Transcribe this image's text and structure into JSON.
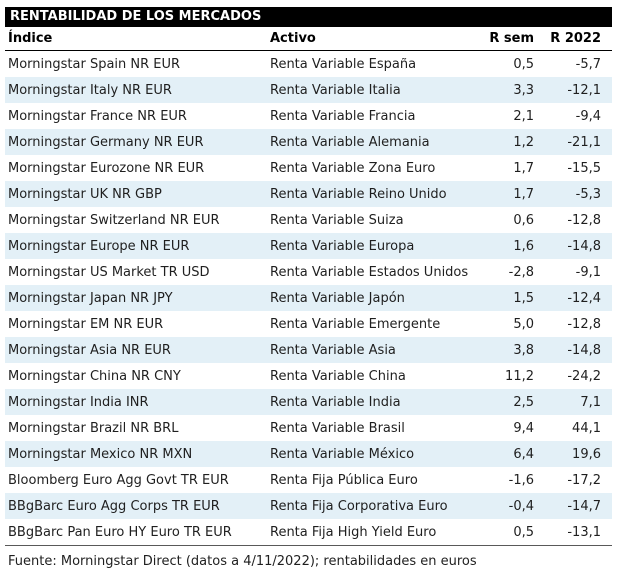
{
  "title": "RENTABILIDAD DE LOS MERCADOS",
  "table": {
    "columns": [
      "Índice",
      "Activo",
      "R sem",
      "R 2022"
    ],
    "rows": [
      [
        "Morningstar Spain NR EUR",
        "Renta Variable España",
        "0,5",
        "-5,7"
      ],
      [
        "Morningstar Italy NR EUR",
        "Renta Variable Italia",
        "3,3",
        "-12,1"
      ],
      [
        "Morningstar France NR EUR",
        "Renta Variable Francia",
        "2,1",
        "-9,4"
      ],
      [
        "Morningstar Germany NR EUR",
        "Renta Variable Alemania",
        "1,2",
        "-21,1"
      ],
      [
        "Morningstar Eurozone NR EUR",
        "Renta Variable Zona Euro",
        "1,7",
        "-15,5"
      ],
      [
        "Morningstar UK NR GBP",
        "Renta Variable Reino Unido",
        "1,7",
        "-5,3"
      ],
      [
        "Morningstar Switzerland NR EUR",
        "Renta Variable Suiza",
        "0,6",
        "-12,8"
      ],
      [
        "Morningstar Europe NR EUR",
        "Renta Variable Europa",
        "1,6",
        "-14,8"
      ],
      [
        "Morningstar US Market TR USD",
        "Renta Variable Estados Unidos",
        "-2,8",
        "-9,1"
      ],
      [
        "Morningstar Japan NR JPY",
        "Renta Variable Japón",
        "1,5",
        "-12,4"
      ],
      [
        "Morningstar EM NR EUR",
        "Renta Variable Emergente",
        "5,0",
        "-12,8"
      ],
      [
        "Morningstar Asia NR EUR",
        "Renta Variable Asia",
        "3,8",
        "-14,8"
      ],
      [
        "Morningstar China NR CNY",
        "Renta Variable China",
        "11,2",
        "-24,2"
      ],
      [
        "Morningstar India INR",
        "Renta Variable India",
        "2,5",
        "7,1"
      ],
      [
        "Morningstar Brazil NR BRL",
        "Renta Variable Brasil",
        "9,4",
        "44,1"
      ],
      [
        "Morningstar Mexico NR MXN",
        "Renta Variable México",
        "6,4",
        "19,6"
      ],
      [
        "Bloomberg Euro Agg Govt TR EUR",
        "Renta Fija Pública Euro",
        "-1,6",
        "-17,2"
      ],
      [
        "BBgBarc Euro Agg Corps TR EUR",
        "Renta Fija Corporativa Euro",
        "-0,4",
        "-14,7"
      ],
      [
        "BBgBarc Pan Euro HY Euro TR EUR",
        "Renta Fija High Yield Euro",
        "0,5",
        "-13,1"
      ]
    ]
  },
  "footer": "Fuente: Morningstar Direct (datos a 4/11/2022); rentabilidades en euros",
  "colors": {
    "title_bar_bg": "#000000",
    "title_bar_text": "#ffffff",
    "row_alt_bg": "#e3f0f7",
    "body_text": "#1f1f1f",
    "header_rule": "#000000",
    "footer_rule": "#595959"
  }
}
